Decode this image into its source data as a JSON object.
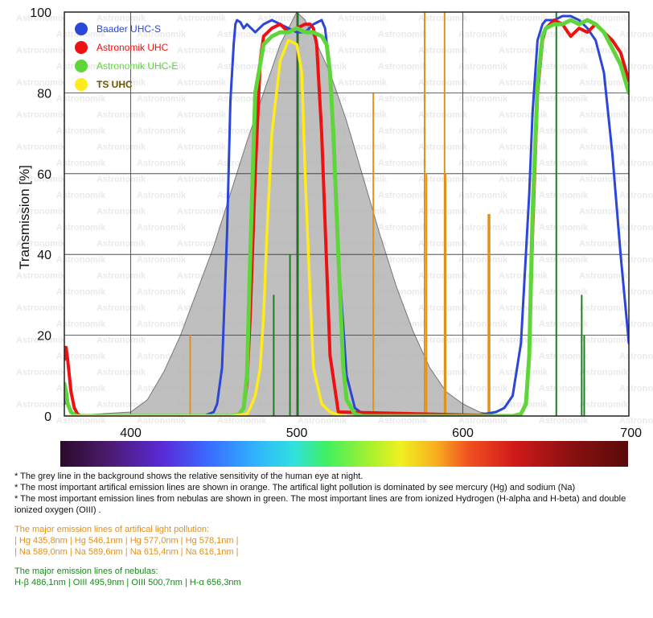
{
  "chart_data": {
    "type": "line",
    "xlabel": "",
    "ylabel": "Transmission [%]",
    "xlim": [
      360,
      700
    ],
    "ylim": [
      0,
      100
    ],
    "x_ticks": [
      "400",
      "500",
      "600",
      "700"
    ],
    "y_ticks": [
      "0",
      "20",
      "40",
      "60",
      "80",
      "100"
    ],
    "grid": true,
    "watermark": "Astronomik",
    "legend_position": "top-left",
    "eye_sensitivity": {
      "color": "#b4b4b4",
      "x": [
        360,
        400,
        410,
        420,
        430,
        440,
        450,
        460,
        470,
        480,
        490,
        500,
        505,
        510,
        520,
        530,
        540,
        550,
        560,
        570,
        580,
        590,
        600,
        610,
        620,
        630
      ],
      "y": [
        0,
        1,
        4,
        11,
        20,
        31,
        42,
        55,
        68,
        80,
        92,
        100,
        98,
        94,
        85,
        73,
        59,
        45,
        32,
        21,
        12,
        6,
        3,
        1,
        0.3,
        0
      ]
    },
    "series": [
      {
        "name": "Baader UHC-S",
        "color": "#2b46d8",
        "x": [
          360,
          361,
          362,
          364,
          366,
          368,
          380,
          400,
          420,
          440,
          445,
          450,
          452,
          455,
          458,
          460,
          462,
          463,
          464,
          466,
          468,
          470,
          475,
          480,
          485,
          490,
          495,
          500,
          505,
          510,
          515,
          517,
          520,
          525,
          530,
          535,
          540,
          550,
          600,
          610,
          620,
          625,
          630,
          635,
          640,
          642,
          645,
          648,
          650,
          655,
          660,
          665,
          670,
          675,
          680,
          685,
          690,
          695,
          700
        ],
        "y": [
          3,
          5,
          3,
          1,
          0.3,
          0,
          0,
          0,
          0,
          0,
          0.2,
          1,
          3,
          12,
          45,
          78,
          92,
          97,
          98,
          97.5,
          96,
          97,
          95,
          97,
          98,
          97,
          96,
          95,
          95,
          97,
          98,
          96,
          85,
          40,
          10,
          2,
          0.5,
          0,
          0,
          0.3,
          1,
          2,
          5,
          18,
          55,
          75,
          93,
          97,
          98,
          98,
          99,
          99,
          98,
          96,
          93,
          85,
          65,
          40,
          18
        ]
      },
      {
        "name": "Astronomik UHC",
        "color": "#ee1111",
        "x": [
          360,
          361,
          362,
          364,
          366,
          368,
          370,
          380,
          460,
          465,
          468,
          470,
          472,
          475,
          478,
          480,
          485,
          490,
          495,
          500,
          505,
          508,
          510,
          512,
          515,
          520,
          525,
          630,
          635,
          638,
          640,
          642,
          645,
          648,
          650,
          655,
          660,
          665,
          670,
          675,
          680,
          685,
          690,
          695,
          700
        ],
        "y": [
          14,
          17,
          14,
          6,
          2,
          0.5,
          0,
          0,
          0,
          0.3,
          2,
          8,
          25,
          60,
          88,
          94,
          96,
          97,
          95,
          96,
          97,
          97,
          96,
          92,
          70,
          15,
          1,
          0,
          0.5,
          3,
          15,
          45,
          80,
          93,
          96,
          98,
          97,
          94,
          96,
          95,
          97,
          95,
          93,
          90,
          83
        ]
      },
      {
        "name": "Astronomik UHC-E",
        "color": "#5ed63a",
        "x": [
          360,
          361,
          362,
          364,
          366,
          368,
          380,
          460,
          465,
          468,
          470,
          472,
          475,
          480,
          485,
          490,
          495,
          500,
          505,
          510,
          515,
          518,
          520,
          522,
          525,
          528,
          530,
          535,
          540,
          630,
          635,
          638,
          640,
          642,
          645,
          648,
          650,
          655,
          660,
          665,
          670,
          675,
          680,
          685,
          690,
          695,
          700
        ],
        "y": [
          8,
          6,
          3,
          1,
          0.3,
          0,
          0,
          0,
          0.3,
          2,
          10,
          40,
          80,
          92,
          94,
          95,
          95,
          96,
          95,
          95,
          94,
          92,
          85,
          70,
          40,
          12,
          4,
          0.5,
          0,
          0,
          0.5,
          3,
          15,
          50,
          82,
          94,
          96,
          97,
          97,
          98,
          97,
          98,
          97,
          95,
          91,
          87,
          80
        ]
      },
      {
        "name": "TS UHC",
        "color": "#ffeb1a",
        "x": [
          360,
          460,
          470,
          472,
          475,
          478,
          480,
          482,
          485,
          490,
          495,
          500,
          503,
          505,
          508,
          510,
          515,
          520,
          525,
          530
        ],
        "y": [
          0,
          0,
          0.5,
          2,
          5,
          12,
          25,
          45,
          70,
          88,
          93,
          92,
          85,
          60,
          30,
          12,
          3,
          1,
          0.3,
          0
        ]
      }
    ],
    "pollution_lines": {
      "color": "#e0901d",
      "wavelengths": [
        435.8,
        546.1,
        577.0,
        578.1,
        589.0,
        589.6,
        615.4,
        616.1
      ],
      "heights": [
        20,
        80,
        100,
        60,
        100,
        60,
        50,
        50
      ]
    },
    "nebula_lines": {
      "color": "#1f7f1f",
      "wavelengths": [
        486.1,
        495.9,
        500.7,
        656.3,
        671.6,
        673.1
      ],
      "heights": [
        30,
        40,
        100,
        100,
        30,
        20
      ]
    }
  },
  "notes": {
    "line1": "* The grey line in the background shows the relative sensitivity of the human eye at night.",
    "line2": "* The most important artifical emission lines are shown in orange. The artifical light pollution is dominated by see mercury (Hg) and sodium (Na)",
    "line3": "* The most important emission lines from nebulas are shown in green. The most important lines are from ionized Hydrogen (H-alpha and H-beta) and double ionized oxygen (OIII) .",
    "pollution_title": "The major emission lines of artifical light pollution:",
    "pollution_row1": "| Hg 435,8nm | Hg 546,1nm | Hg 577,0nm | Hg 578,1nm |",
    "pollution_row2": "| Na 589,0nm | Na 589,6nm | Na 615,4nm | Na 616,1nm |",
    "nebula_title": "The major emission lines of nebulas:",
    "nebula_row": "H-β 486,1nm | OIII 495,9nm | OIII 500,7nm | H-α 656,3nm"
  }
}
